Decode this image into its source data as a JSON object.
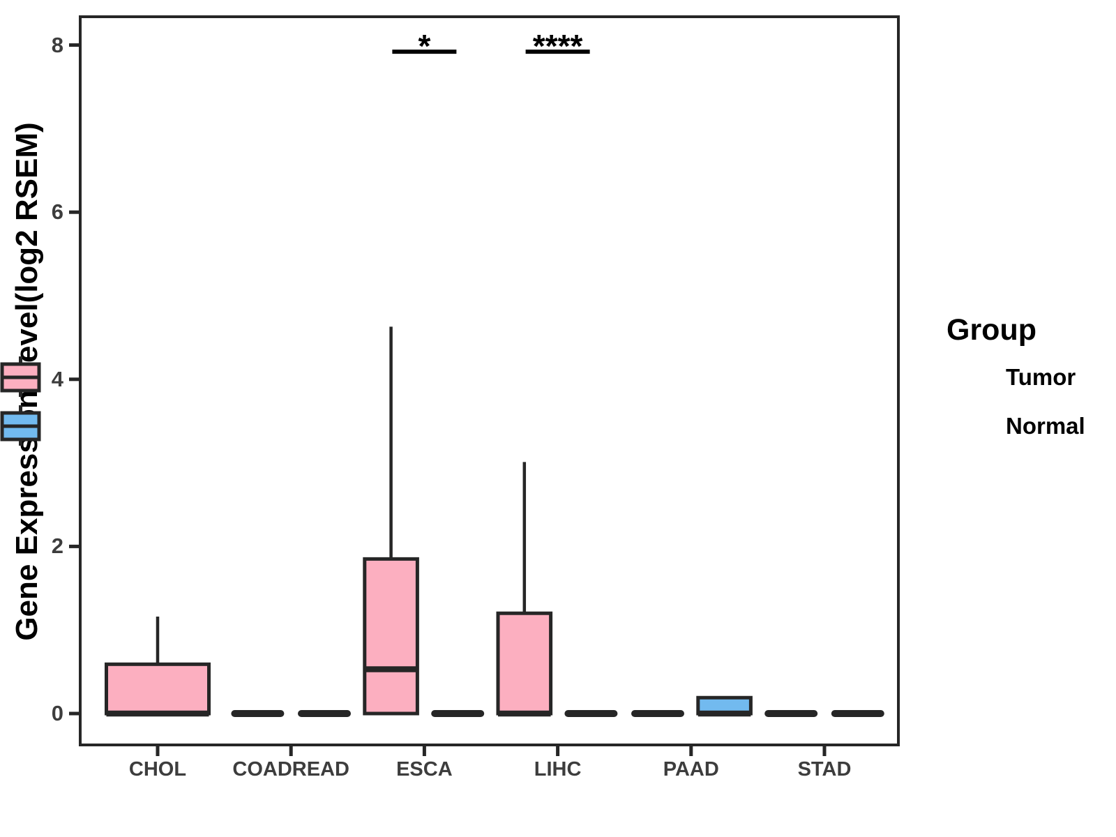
{
  "figure": {
    "background": "#ffffff",
    "y_axis_title": "Gene Expression Level(log2 RSEM)",
    "legend": {
      "title": "Group",
      "items": [
        {
          "label": "Tumor",
          "color": "#FCAFC0"
        },
        {
          "label": "Normal",
          "color": "#72BAEF"
        }
      ]
    }
  },
  "chart_data": {
    "type": "grouped_boxplot",
    "title": "",
    "xlabel": "",
    "ylabel": "Gene Expression Level(log2 RSEM)",
    "categories": [
      "CHOL",
      "COADREAD",
      "ESCA",
      "LIHC",
      "PAAD",
      "STAD"
    ],
    "groups": [
      "Tumor",
      "Normal"
    ],
    "yticks": [
      0,
      2,
      4,
      6,
      8
    ],
    "ylim": [
      -0.39,
      8.36
    ],
    "grid": false,
    "legend_position": "right",
    "colors": {
      "Tumor": "#FCAFC0",
      "Normal": "#72BAEF",
      "stroke": "#262626",
      "tick_text": "#3d3d3d"
    },
    "boxes": [
      {
        "category": "CHOL",
        "group": "Tumor",
        "q1": 0,
        "median": 0,
        "q3": 0.59,
        "whisker_low": 0,
        "whisker_high": 1.16,
        "full_width": true
      },
      {
        "category": "COADREAD",
        "group": "Tumor",
        "q1": 0,
        "median": 0,
        "q3": 0,
        "whisker_low": 0,
        "whisker_high": 0
      },
      {
        "category": "COADREAD",
        "group": "Normal",
        "q1": 0,
        "median": 0,
        "q3": 0,
        "whisker_low": 0,
        "whisker_high": 0
      },
      {
        "category": "ESCA",
        "group": "Tumor",
        "q1": 0,
        "median": 0.53,
        "q3": 1.85,
        "whisker_low": 0,
        "whisker_high": 4.63
      },
      {
        "category": "ESCA",
        "group": "Normal",
        "q1": 0,
        "median": 0,
        "q3": 0,
        "whisker_low": 0,
        "whisker_high": 0
      },
      {
        "category": "LIHC",
        "group": "Tumor",
        "q1": 0,
        "median": 0,
        "q3": 1.2,
        "whisker_low": 0,
        "whisker_high": 3.01
      },
      {
        "category": "LIHC",
        "group": "Normal",
        "q1": 0,
        "median": 0,
        "q3": 0,
        "whisker_low": 0,
        "whisker_high": 0
      },
      {
        "category": "PAAD",
        "group": "Tumor",
        "q1": 0,
        "median": 0,
        "q3": 0,
        "whisker_low": 0,
        "whisker_high": 0
      },
      {
        "category": "PAAD",
        "group": "Normal",
        "q1": 0,
        "median": 0,
        "q3": 0.19,
        "whisker_low": 0,
        "whisker_high": 0.19
      },
      {
        "category": "STAD",
        "group": "Tumor",
        "q1": 0,
        "median": 0,
        "q3": 0,
        "whisker_low": 0,
        "whisker_high": 0
      },
      {
        "category": "STAD",
        "group": "Normal",
        "q1": 0,
        "median": 0,
        "q3": 0,
        "whisker_low": 0,
        "whisker_high": 0
      }
    ],
    "significance": [
      {
        "category": "ESCA",
        "label": "*",
        "y": 7.92
      },
      {
        "category": "LIHC",
        "label": "****",
        "y": 7.92
      }
    ]
  }
}
